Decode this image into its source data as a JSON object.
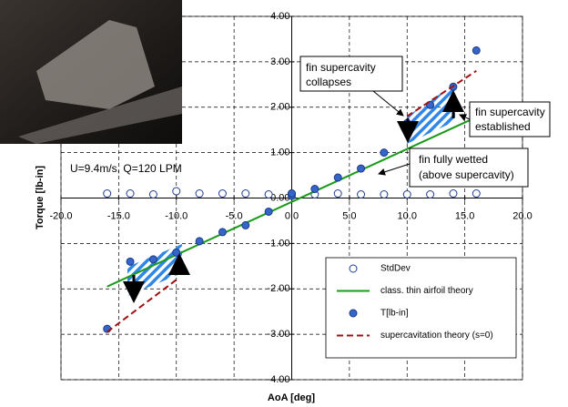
{
  "chart_data": {
    "type": "scatter",
    "x_label": "AoA [deg]",
    "y_label": "Torque [lb-in]",
    "xlim": [
      -20,
      20
    ],
    "ylim": [
      -4,
      4
    ],
    "xticks": [
      {
        "value": -20,
        "label": "-20.0"
      },
      {
        "value": -15,
        "label": "-15.0"
      },
      {
        "value": -10,
        "label": "-10.0"
      },
      {
        "value": -5,
        "label": "-5.0"
      },
      {
        "value": 0,
        "label": "0.0"
      },
      {
        "value": 5,
        "label": "5.0"
      },
      {
        "value": 10,
        "label": "10.0"
      },
      {
        "value": 15,
        "label": "15.0"
      },
      {
        "value": 20,
        "label": "20.0"
      }
    ],
    "yticks": [
      {
        "value": -4,
        "label": "-4.00"
      },
      {
        "value": -3,
        "label": "-3.00"
      },
      {
        "value": -2,
        "label": "-2.00"
      },
      {
        "value": -1,
        "label": "-1.00"
      },
      {
        "value": 0,
        "label": "0.00"
      },
      {
        "value": 1,
        "label": "1.00"
      },
      {
        "value": 2,
        "label": "2.00"
      },
      {
        "value": 3,
        "label": "3.00"
      },
      {
        "value": 4,
        "label": "4.00"
      }
    ],
    "grid": true,
    "series": [
      {
        "name": "StdDev",
        "kind": "marker",
        "marker": "open",
        "color": "#1f3c8f",
        "x": [
          -16,
          -14,
          -12,
          -10,
          -8,
          -6,
          -4,
          -2,
          0,
          2,
          4,
          6,
          8,
          10,
          12,
          14,
          16
        ],
        "values": [
          0.1,
          0.1,
          0.08,
          0.15,
          0.1,
          0.1,
          0.1,
          0.08,
          0.1,
          0.08,
          0.1,
          0.08,
          0.08,
          0.08,
          0.08,
          0.1,
          0.1
        ]
      },
      {
        "name": "class. thin airfoil theory",
        "kind": "line",
        "color": "#1a9a1a",
        "x": [
          -16,
          16
        ],
        "values": [
          -1.95,
          1.78
        ]
      },
      {
        "name": "T[lb-in]",
        "kind": "marker",
        "marker": "filled",
        "color": "#3565c8",
        "x": [
          -16,
          -14,
          -12,
          -10,
          -8,
          -6,
          -4,
          -2,
          0,
          0,
          2,
          4,
          6,
          8,
          10,
          12,
          14,
          16
        ],
        "values": [
          -2.88,
          -1.4,
          -1.35,
          -1.2,
          -0.95,
          -0.75,
          -0.6,
          -0.3,
          0.05,
          0.1,
          0.2,
          0.45,
          0.65,
          1.0,
          1.65,
          2.05,
          2.45,
          3.25
        ]
      },
      {
        "name": "supercavitation theory (s=0)",
        "kind": "line",
        "dash": true,
        "color": "#a01010",
        "x": [
          -16,
          -10,
          0,
          10,
          16
        ],
        "values": [
          -2.95,
          -1.8,
          null,
          1.8,
          2.8
        ]
      }
    ],
    "legend_position": "lower right",
    "annotations": [
      {
        "lines": [
          "U=9.4m/s, Q=120 LPM"
        ]
      },
      {
        "lines": [
          "fin supercavity",
          "collapses"
        ]
      },
      {
        "lines": [
          "fin supercavity",
          "established"
        ]
      },
      {
        "lines": [
          "fin fully wetted",
          "(above supercavity)"
        ]
      }
    ]
  }
}
